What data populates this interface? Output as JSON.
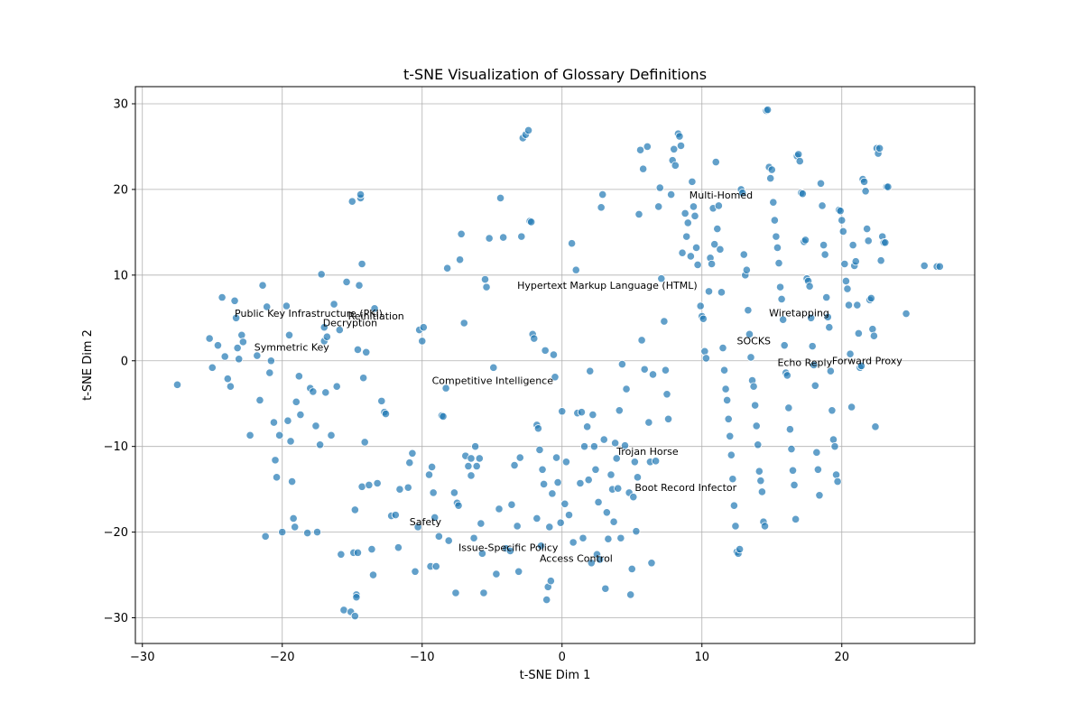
{
  "chart_data": {
    "type": "scatter",
    "title": "t-SNE Visualization of Glossary Definitions",
    "xlabel": "t-SNE Dim 1",
    "ylabel": "t-SNE Dim 2",
    "xlim": [
      -30.5,
      29.5
    ],
    "ylim": [
      -33,
      32
    ],
    "xticks": [
      -30,
      -20,
      -10,
      0,
      10,
      20
    ],
    "yticks": [
      -30,
      -20,
      -10,
      0,
      10,
      20,
      30
    ],
    "grid": true,
    "point_color": "#1f77b4",
    "points": [
      [
        -27.5,
        -2.8
      ],
      [
        -25.2,
        2.6
      ],
      [
        -25.0,
        -0.8
      ],
      [
        -24.6,
        1.8
      ],
      [
        -24.3,
        7.4
      ],
      [
        -24.1,
        0.5
      ],
      [
        -23.9,
        -2.1
      ],
      [
        -23.7,
        -3.0
      ],
      [
        -23.4,
        7.0
      ],
      [
        -23.3,
        5.0
      ],
      [
        -23.2,
        1.5
      ],
      [
        -23.1,
        0.2
      ],
      [
        -22.9,
        3.0
      ],
      [
        -22.8,
        2.2
      ],
      [
        -22.3,
        -8.7
      ],
      [
        -21.8,
        0.6
      ],
      [
        -21.6,
        -4.6
      ],
      [
        -21.4,
        8.8
      ],
      [
        -21.1,
        6.3
      ],
      [
        -21.2,
        -20.5
      ],
      [
        -20.9,
        -1.4
      ],
      [
        -20.8,
        0.0
      ],
      [
        -20.6,
        -7.2
      ],
      [
        -20.5,
        -11.6
      ],
      [
        -20.4,
        -13.6
      ],
      [
        -20.2,
        -8.7
      ],
      [
        -20.0,
        -20.0
      ],
      [
        -19.7,
        6.4
      ],
      [
        -19.6,
        -7.0
      ],
      [
        -19.5,
        3.0
      ],
      [
        -19.4,
        -9.4
      ],
      [
        -19.3,
        -14.1
      ],
      [
        -19.2,
        -18.4
      ],
      [
        -19.1,
        -19.4
      ],
      [
        -19.0,
        -4.8
      ],
      [
        -18.8,
        -1.8
      ],
      [
        -18.7,
        -6.3
      ],
      [
        -18.2,
        -20.1
      ],
      [
        -18.0,
        -3.2
      ],
      [
        -17.8,
        -3.6
      ],
      [
        -17.6,
        -7.6
      ],
      [
        -17.5,
        -20.0
      ],
      [
        -17.3,
        -9.8
      ],
      [
        -17.2,
        10.1
      ],
      [
        -17.0,
        3.9
      ],
      [
        -17.0,
        2.3
      ],
      [
        -16.9,
        -3.7
      ],
      [
        -16.8,
        2.8
      ],
      [
        -16.5,
        -8.7
      ],
      [
        -16.3,
        6.6
      ],
      [
        -16.1,
        -3.0
      ],
      [
        -15.9,
        3.6
      ],
      [
        -15.8,
        -22.6
      ],
      [
        -15.6,
        -29.1
      ],
      [
        -15.4,
        9.2
      ],
      [
        -15.1,
        -29.3
      ],
      [
        -15.0,
        18.6
      ],
      [
        -14.9,
        -22.4
      ],
      [
        -14.8,
        -29.8
      ],
      [
        -14.8,
        -17.4
      ],
      [
        -14.7,
        -27.3
      ],
      [
        -14.7,
        -27.6
      ],
      [
        -14.6,
        1.3
      ],
      [
        -14.6,
        -22.4
      ],
      [
        -14.5,
        8.8
      ],
      [
        -14.4,
        19.0
      ],
      [
        -14.4,
        19.4
      ],
      [
        -14.3,
        11.3
      ],
      [
        -14.3,
        -14.7
      ],
      [
        -14.2,
        -2.0
      ],
      [
        -14.1,
        -9.5
      ],
      [
        -14.0,
        1.0
      ],
      [
        -13.8,
        -14.5
      ],
      [
        -13.6,
        -22.0
      ],
      [
        -13.5,
        -25.0
      ],
      [
        -13.4,
        6.1
      ],
      [
        -13.2,
        -14.3
      ],
      [
        -12.9,
        -4.7
      ],
      [
        -12.7,
        -6.0
      ],
      [
        -12.6,
        -6.2
      ],
      [
        -12.2,
        -18.1
      ],
      [
        -11.9,
        -18.0
      ],
      [
        -11.7,
        -21.8
      ],
      [
        -11.6,
        -15.0
      ],
      [
        -11.0,
        -14.8
      ],
      [
        -10.9,
        -11.9
      ],
      [
        -10.7,
        -10.8
      ],
      [
        -10.5,
        -24.6
      ],
      [
        -10.3,
        -19.4
      ],
      [
        -10.2,
        3.6
      ],
      [
        -10.0,
        2.3
      ],
      [
        -9.9,
        3.9
      ],
      [
        -9.5,
        -13.3
      ],
      [
        -9.4,
        -24.0
      ],
      [
        -9.3,
        -12.4
      ],
      [
        -9.2,
        -15.4
      ],
      [
        -9.1,
        -18.3
      ],
      [
        -9.0,
        -24.0
      ],
      [
        -8.8,
        -20.5
      ],
      [
        -8.6,
        -6.4
      ],
      [
        -8.5,
        -6.5
      ],
      [
        -8.3,
        -3.2
      ],
      [
        -8.2,
        10.8
      ],
      [
        -8.1,
        -21.0
      ],
      [
        -7.7,
        -15.4
      ],
      [
        -7.6,
        -27.1
      ],
      [
        -7.5,
        -16.6
      ],
      [
        -7.4,
        -16.9
      ],
      [
        -7.3,
        11.8
      ],
      [
        -7.2,
        14.8
      ],
      [
        -7.0,
        4.4
      ],
      [
        -6.9,
        -11.1
      ],
      [
        -6.7,
        -12.3
      ],
      [
        -6.5,
        -11.4
      ],
      [
        -6.5,
        -13.4
      ],
      [
        -6.3,
        -20.7
      ],
      [
        -6.2,
        -10.0
      ],
      [
        -6.1,
        -12.3
      ],
      [
        -5.9,
        -11.4
      ],
      [
        -5.8,
        -19.0
      ],
      [
        -5.7,
        -22.5
      ],
      [
        -5.6,
        -27.1
      ],
      [
        -5.5,
        9.5
      ],
      [
        -5.4,
        8.6
      ],
      [
        -5.2,
        14.3
      ],
      [
        -4.9,
        -0.8
      ],
      [
        -4.7,
        -24.9
      ],
      [
        -4.5,
        -17.3
      ],
      [
        -4.4,
        19.0
      ],
      [
        -4.2,
        14.4
      ],
      [
        -4.0,
        -21.9
      ],
      [
        -3.7,
        -22.2
      ],
      [
        -3.6,
        -16.8
      ],
      [
        -3.4,
        -12.2
      ],
      [
        -3.2,
        -19.3
      ],
      [
        -3.1,
        -24.6
      ],
      [
        -3.0,
        -11.3
      ],
      [
        -2.9,
        14.5
      ],
      [
        -2.8,
        26.0
      ],
      [
        -2.6,
        26.4
      ],
      [
        -2.4,
        26.9
      ],
      [
        -2.3,
        16.3
      ],
      [
        -2.2,
        16.2
      ],
      [
        -2.1,
        3.1
      ],
      [
        -2.0,
        2.6
      ],
      [
        -1.8,
        -7.5
      ],
      [
        -1.8,
        -18.4
      ],
      [
        -1.7,
        -7.9
      ],
      [
        -1.6,
        -10.4
      ],
      [
        -1.5,
        -21.6
      ],
      [
        -1.4,
        -12.7
      ],
      [
        -1.3,
        -14.4
      ],
      [
        -1.2,
        1.2
      ],
      [
        -1.1,
        -27.9
      ],
      [
        -1.0,
        -26.4
      ],
      [
        -0.9,
        -19.4
      ],
      [
        -0.8,
        -25.7
      ],
      [
        -0.7,
        -15.5
      ],
      [
        -0.6,
        0.7
      ],
      [
        -0.5,
        -1.9
      ],
      [
        -0.4,
        -11.3
      ],
      [
        -0.3,
        -14.2
      ],
      [
        -0.1,
        -18.9
      ],
      [
        0.0,
        -5.9
      ],
      [
        0.2,
        -16.7
      ],
      [
        0.3,
        -11.8
      ],
      [
        0.5,
        -18.0
      ],
      [
        0.7,
        13.7
      ],
      [
        0.8,
        -21.2
      ],
      [
        1.0,
        10.6
      ],
      [
        1.1,
        -6.1
      ],
      [
        1.3,
        -14.3
      ],
      [
        1.4,
        -6.0
      ],
      [
        1.5,
        -20.7
      ],
      [
        1.6,
        -10.0
      ],
      [
        1.8,
        -7.7
      ],
      [
        1.9,
        -13.9
      ],
      [
        2.0,
        -1.2
      ],
      [
        2.1,
        -23.6
      ],
      [
        2.2,
        -6.3
      ],
      [
        2.3,
        -10.0
      ],
      [
        2.4,
        -12.7
      ],
      [
        2.5,
        -22.6
      ],
      [
        2.6,
        -16.5
      ],
      [
        2.7,
        -23.2
      ],
      [
        2.8,
        17.9
      ],
      [
        2.9,
        19.4
      ],
      [
        3.0,
        -9.2
      ],
      [
        3.1,
        -26.6
      ],
      [
        3.2,
        -17.7
      ],
      [
        3.3,
        -20.8
      ],
      [
        3.5,
        -13.3
      ],
      [
        3.6,
        -15.0
      ],
      [
        3.7,
        -18.8
      ],
      [
        3.8,
        -9.6
      ],
      [
        3.9,
        -11.4
      ],
      [
        4.0,
        -14.9
      ],
      [
        4.1,
        -5.8
      ],
      [
        4.2,
        -20.7
      ],
      [
        4.3,
        -0.4
      ],
      [
        4.5,
        -9.9
      ],
      [
        4.6,
        -3.3
      ],
      [
        4.8,
        -15.4
      ],
      [
        4.9,
        -27.3
      ],
      [
        5.0,
        -24.3
      ],
      [
        5.1,
        -15.9
      ],
      [
        5.2,
        -11.8
      ],
      [
        5.3,
        -19.9
      ],
      [
        5.4,
        -13.6
      ],
      [
        5.5,
        17.1
      ],
      [
        5.6,
        24.6
      ],
      [
        5.7,
        2.4
      ],
      [
        5.8,
        22.4
      ],
      [
        5.9,
        -1.0
      ],
      [
        6.1,
        25.0
      ],
      [
        6.2,
        -7.2
      ],
      [
        6.3,
        -11.8
      ],
      [
        6.4,
        -23.6
      ],
      [
        6.5,
        -1.6
      ],
      [
        6.7,
        -11.7
      ],
      [
        6.9,
        18.0
      ],
      [
        7.0,
        20.2
      ],
      [
        7.1,
        9.6
      ],
      [
        7.3,
        4.6
      ],
      [
        7.4,
        -1.1
      ],
      [
        7.5,
        -3.9
      ],
      [
        7.6,
        -6.8
      ],
      [
        7.8,
        19.4
      ],
      [
        7.9,
        23.4
      ],
      [
        8.0,
        24.7
      ],
      [
        8.1,
        22.8
      ],
      [
        8.3,
        26.5
      ],
      [
        8.4,
        26.2
      ],
      [
        8.5,
        25.1
      ],
      [
        8.6,
        12.6
      ],
      [
        8.8,
        17.2
      ],
      [
        8.9,
        14.5
      ],
      [
        9.0,
        16.1
      ],
      [
        9.2,
        12.2
      ],
      [
        9.3,
        20.9
      ],
      [
        9.4,
        18.0
      ],
      [
        9.5,
        16.9
      ],
      [
        9.6,
        13.2
      ],
      [
        9.7,
        11.2
      ],
      [
        9.9,
        6.4
      ],
      [
        10.0,
        5.2
      ],
      [
        10.1,
        4.9
      ],
      [
        10.2,
        1.1
      ],
      [
        10.3,
        0.3
      ],
      [
        10.5,
        8.1
      ],
      [
        10.6,
        12.0
      ],
      [
        10.7,
        11.3
      ],
      [
        10.8,
        17.8
      ],
      [
        10.9,
        13.6
      ],
      [
        11.0,
        23.2
      ],
      [
        11.1,
        15.4
      ],
      [
        11.2,
        18.1
      ],
      [
        11.3,
        13.0
      ],
      [
        11.4,
        8.0
      ],
      [
        11.5,
        1.5
      ],
      [
        11.6,
        -1.1
      ],
      [
        11.7,
        -3.3
      ],
      [
        11.8,
        -4.6
      ],
      [
        11.9,
        -6.8
      ],
      [
        12.0,
        -8.8
      ],
      [
        12.1,
        -11.0
      ],
      [
        12.2,
        -13.8
      ],
      [
        12.3,
        -16.9
      ],
      [
        12.4,
        -19.3
      ],
      [
        12.5,
        -22.3
      ],
      [
        12.6,
        -22.5
      ],
      [
        12.7,
        -22.0
      ],
      [
        12.8,
        20.0
      ],
      [
        12.9,
        19.6
      ],
      [
        13.0,
        12.4
      ],
      [
        13.1,
        10.0
      ],
      [
        13.2,
        10.6
      ],
      [
        13.3,
        5.9
      ],
      [
        13.4,
        3.1
      ],
      [
        13.5,
        0.4
      ],
      [
        13.6,
        -2.3
      ],
      [
        13.7,
        -3.0
      ],
      [
        13.8,
        -5.2
      ],
      [
        13.9,
        -7.6
      ],
      [
        14.0,
        -9.8
      ],
      [
        14.1,
        -12.9
      ],
      [
        14.2,
        -14.0
      ],
      [
        14.3,
        -15.3
      ],
      [
        14.4,
        -18.8
      ],
      [
        14.5,
        -19.3
      ],
      [
        14.6,
        29.2
      ],
      [
        14.7,
        29.3
      ],
      [
        14.8,
        22.6
      ],
      [
        14.9,
        21.3
      ],
      [
        15.0,
        22.3
      ],
      [
        15.1,
        18.5
      ],
      [
        15.2,
        16.4
      ],
      [
        15.3,
        14.5
      ],
      [
        15.4,
        13.2
      ],
      [
        15.5,
        11.4
      ],
      [
        15.6,
        8.6
      ],
      [
        15.7,
        7.2
      ],
      [
        15.8,
        4.8
      ],
      [
        15.9,
        1.8
      ],
      [
        16.0,
        -1.4
      ],
      [
        16.1,
        -1.7
      ],
      [
        16.2,
        -5.5
      ],
      [
        16.3,
        -8.0
      ],
      [
        16.4,
        -10.3
      ],
      [
        16.5,
        -12.8
      ],
      [
        16.6,
        -14.5
      ],
      [
        16.7,
        -18.5
      ],
      [
        16.8,
        23.9
      ],
      [
        16.9,
        24.1
      ],
      [
        17.0,
        23.3
      ],
      [
        17.1,
        19.6
      ],
      [
        17.2,
        19.5
      ],
      [
        17.3,
        13.9
      ],
      [
        17.4,
        14.1
      ],
      [
        17.5,
        9.6
      ],
      [
        17.6,
        9.3
      ],
      [
        17.7,
        8.7
      ],
      [
        17.8,
        5.0
      ],
      [
        17.9,
        1.7
      ],
      [
        18.0,
        -0.5
      ],
      [
        18.1,
        -2.9
      ],
      [
        18.2,
        -10.7
      ],
      [
        18.3,
        -12.7
      ],
      [
        18.4,
        -15.7
      ],
      [
        18.5,
        20.7
      ],
      [
        18.6,
        18.1
      ],
      [
        18.7,
        13.5
      ],
      [
        18.8,
        12.4
      ],
      [
        18.9,
        7.4
      ],
      [
        19.0,
        5.1
      ],
      [
        19.1,
        3.9
      ],
      [
        19.2,
        -1.2
      ],
      [
        19.3,
        -5.8
      ],
      [
        19.4,
        -9.2
      ],
      [
        19.5,
        -10.0
      ],
      [
        19.6,
        -13.3
      ],
      [
        19.7,
        -14.1
      ],
      [
        19.8,
        17.6
      ],
      [
        19.9,
        17.5
      ],
      [
        20.0,
        16.4
      ],
      [
        20.1,
        15.1
      ],
      [
        20.2,
        11.3
      ],
      [
        20.3,
        9.3
      ],
      [
        20.4,
        8.4
      ],
      [
        20.5,
        6.5
      ],
      [
        20.6,
        0.8
      ],
      [
        20.7,
        -5.4
      ],
      [
        20.8,
        13.5
      ],
      [
        20.9,
        11.1
      ],
      [
        21.0,
        11.6
      ],
      [
        21.1,
        6.5
      ],
      [
        21.2,
        3.2
      ],
      [
        21.3,
        -0.8
      ],
      [
        21.4,
        -0.6
      ],
      [
        21.5,
        21.2
      ],
      [
        21.6,
        20.9
      ],
      [
        21.7,
        19.8
      ],
      [
        21.8,
        15.4
      ],
      [
        21.9,
        14.0
      ],
      [
        22.0,
        7.1
      ],
      [
        22.1,
        7.3
      ],
      [
        22.2,
        3.7
      ],
      [
        22.3,
        2.9
      ],
      [
        22.4,
        -7.7
      ],
      [
        22.5,
        24.8
      ],
      [
        22.6,
        24.2
      ],
      [
        22.7,
        24.8
      ],
      [
        22.8,
        11.7
      ],
      [
        22.9,
        14.5
      ],
      [
        23.0,
        13.8
      ],
      [
        23.1,
        13.8
      ],
      [
        23.2,
        20.3
      ],
      [
        23.3,
        20.3
      ],
      [
        24.6,
        5.5
      ],
      [
        25.9,
        11.1
      ],
      [
        26.8,
        11.0
      ],
      [
        27.0,
        11.0
      ]
    ],
    "annotations": [
      {
        "text": "Multi-Homed",
        "x": 9.1,
        "y": 18.7
      },
      {
        "text": "Hypertext Markup Language (HTML)",
        "x": -3.2,
        "y": 8.2
      },
      {
        "text": "Wiretapping",
        "x": 14.8,
        "y": 5.0
      },
      {
        "text": "Public Key Infrastructure (PKI)",
        "x": -23.4,
        "y": 4.9
      },
      {
        "text": "Reinitiation",
        "x": -15.3,
        "y": 4.6
      },
      {
        "text": "Decryption",
        "x": -17.1,
        "y": 3.8
      },
      {
        "text": "SOCKS",
        "x": 12.5,
        "y": 1.7
      },
      {
        "text": "Symmetric Key",
        "x": -22.0,
        "y": 1.0
      },
      {
        "text": "Echo Reply",
        "x": 15.4,
        "y": -0.8
      },
      {
        "text": "Forward Proxy",
        "x": 19.3,
        "y": -0.6
      },
      {
        "text": "Competitive Intelligence",
        "x": -9.3,
        "y": -2.9
      },
      {
        "text": "Trojan Horse",
        "x": 3.9,
        "y": -11.2
      },
      {
        "text": "Boot Record Infector",
        "x": 5.2,
        "y": -15.4
      },
      {
        "text": "Safety",
        "x": -10.9,
        "y": -19.4
      },
      {
        "text": "Issue-Specific Policy",
        "x": -7.4,
        "y": -22.4
      },
      {
        "text": "Access Control",
        "x": -1.6,
        "y": -23.7
      }
    ]
  }
}
